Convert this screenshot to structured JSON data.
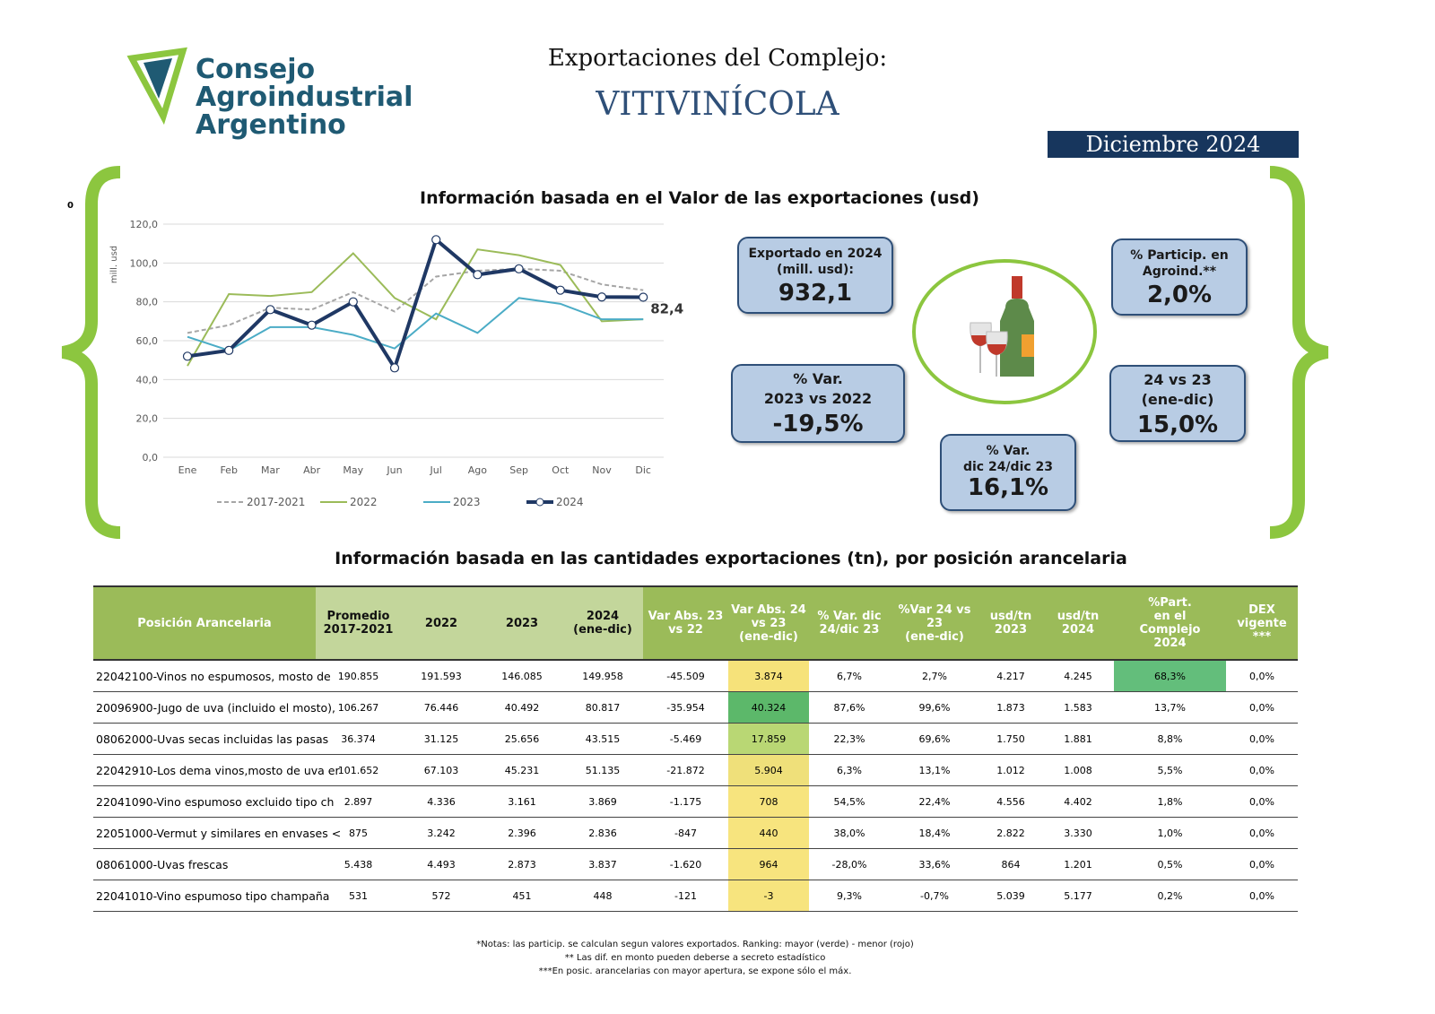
{
  "header": {
    "logo_lines": [
      "Consejo",
      "Agroindustrial",
      "Argentino"
    ],
    "title_line1": "Exportaciones del Complejo:",
    "title_line2": "VITIVINÍCOLA",
    "period": "Diciembre 2024",
    "stray_mark": "0"
  },
  "value_section": {
    "title": "Información basada en el Valor de las exportaciones (usd)"
  },
  "chart_data": {
    "type": "line",
    "ylabel": "mill. usd",
    "ylim": [
      0,
      120
    ],
    "yticks": [
      "0,0",
      "20,0",
      "40,0",
      "60,0",
      "80,0",
      "100,0",
      "120,0"
    ],
    "grid": true,
    "legend": "bottom",
    "categories": [
      "Ene",
      "Feb",
      "Mar",
      "Abr",
      "May",
      "Jun",
      "Jul",
      "Ago",
      "Sep",
      "Oct",
      "Nov",
      "Dic"
    ],
    "series": [
      {
        "name": "2017-2021",
        "color": "#a6a6a6",
        "values": [
          64,
          68,
          77,
          76,
          85,
          75,
          93,
          96,
          97,
          96,
          89,
          86
        ]
      },
      {
        "name": "2022",
        "color": "#9bbb59",
        "values": [
          47,
          84,
          83,
          85,
          105,
          82,
          71,
          107,
          104,
          99,
          70,
          71
        ]
      },
      {
        "name": "2023",
        "color": "#4bacc6",
        "values": [
          62,
          55,
          67,
          67,
          63,
          56,
          74,
          64,
          82,
          79,
          71,
          71
        ]
      },
      {
        "name": "2024",
        "color": "#1f3864",
        "values": [
          52,
          55,
          76,
          68,
          80,
          46,
          112,
          94,
          97,
          86,
          82.5,
          82.4
        ]
      }
    ],
    "end_label": "82,4"
  },
  "kpis": [
    {
      "label": "Exportado en 2024\n(mill. usd):",
      "value": "932,1"
    },
    {
      "label": "% Particip. en\nAgroind.**",
      "value": "2,0%"
    },
    {
      "label": "% Var.\n2023 vs 2022",
      "value": "-19,5%"
    },
    {
      "label": "24 vs 23\n(ene-dic)",
      "value": "15,0%"
    },
    {
      "label": "% Var.\ndic 24/dic 23",
      "value": "16,1%"
    }
  ],
  "table_section": {
    "title": "Información basada en las cantidades exportaciones (tn), por posición arancelaria",
    "headers": [
      "Posición Arancelaria",
      "Promedio\n2017-2021",
      "2022",
      "2023",
      "2024\n(ene-dic)",
      "Var Abs. 23\nvs 22",
      "Var Abs. 24\nvs 23\n(ene-dic)",
      "% Var. dic\n24/dic 23",
      "%Var 24 vs 23\n(ene-dic)",
      "usd/tn\n2023",
      "usd/tn\n2024",
      "%Part.\nen el\nComplejo\n2024",
      "DEX\nvigente\n***"
    ],
    "rows": [
      [
        "22042100-Vinos no espumosos, mosto de",
        "190.855",
        "191.593",
        "146.085",
        "149.958",
        "-45.509",
        "3.874",
        "6,7%",
        "2,7%",
        "4.217",
        "4.245",
        "68,3%",
        "0,0%"
      ],
      [
        "20096900-Jugo de uva (incluido el mosto),",
        "106.267",
        "76.446",
        "40.492",
        "80.817",
        "-35.954",
        "40.324",
        "87,6%",
        "99,6%",
        "1.873",
        "1.583",
        "13,7%",
        "0,0%"
      ],
      [
        "08062000-Uvas secas incluidas las pasas",
        "36.374",
        "31.125",
        "25.656",
        "43.515",
        "-5.469",
        "17.859",
        "22,3%",
        "69,6%",
        "1.750",
        "1.881",
        "8,8%",
        "0,0%"
      ],
      [
        "22042910-Los dema vinos,mosto de uva er",
        "101.652",
        "67.103",
        "45.231",
        "51.135",
        "-21.872",
        "5.904",
        "6,3%",
        "13,1%",
        "1.012",
        "1.008",
        "5,5%",
        "0,0%"
      ],
      [
        "22041090-Vino espumoso excluido tipo ch",
        "2.897",
        "4.336",
        "3.161",
        "3.869",
        "-1.175",
        "708",
        "54,5%",
        "22,4%",
        "4.556",
        "4.402",
        "1,8%",
        "0,0%"
      ],
      [
        "22051000-Vermut y similares en envases <",
        "875",
        "3.242",
        "2.396",
        "2.836",
        "-847",
        "440",
        "38,0%",
        "18,4%",
        "2.822",
        "3.330",
        "1,0%",
        "0,0%"
      ],
      [
        "08061000-Uvas frescas",
        "5.438",
        "4.493",
        "2.873",
        "3.837",
        "-1.620",
        "964",
        "-28,0%",
        "33,6%",
        "864",
        "1.201",
        "0,5%",
        "0,0%"
      ],
      [
        "22041010-Vino espumoso tipo champaña",
        "531",
        "572",
        "451",
        "448",
        "-121",
        "-3",
        "9,3%",
        "-0,7%",
        "5.039",
        "5.177",
        "0,2%",
        "0,0%"
      ]
    ],
    "var_abs_colors": [
      "#f6e27a",
      "#5cb86a",
      "#b9d774",
      "#efe07a",
      "#f7e47e",
      "#f7e47e",
      "#f7e47e",
      "#f7e47e"
    ],
    "part_colors": [
      "#63be7b",
      "",
      "",
      "",
      "",
      "",
      "",
      ""
    ]
  },
  "notes": [
    "*Notas: las particip. se calculan segun valores exportados. Ranking: mayor (verde) - menor (rojo)",
    "** Las dif. en monto pueden deberse a secreto estadístico",
    "***En posic. arancelarias con mayor apertura, se expone sólo el máx."
  ]
}
